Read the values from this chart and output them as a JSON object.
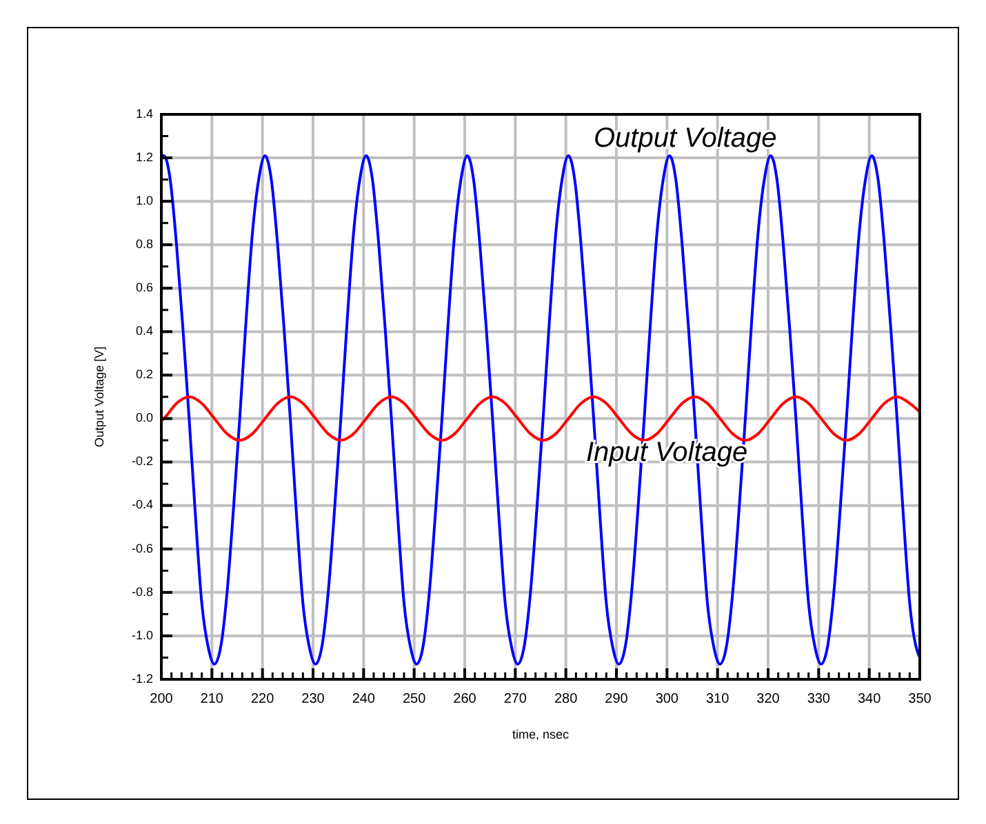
{
  "chart_data": {
    "type": "line",
    "xlabel": "time, nsec",
    "ylabel": "Output Voltage [V]",
    "xlim": [
      200,
      350
    ],
    "xticks": [
      200,
      210,
      220,
      230,
      240,
      250,
      260,
      270,
      280,
      290,
      300,
      310,
      320,
      330,
      340,
      350
    ],
    "ylim": [
      -1.2,
      1.4
    ],
    "yticks": [
      {
        "value": -1.2,
        "label": "-1.2"
      },
      {
        "value": -1.0,
        "label": "-1.0"
      },
      {
        "value": -0.8,
        "label": "-0.8"
      },
      {
        "value": -0.6,
        "label": "-0.6"
      },
      {
        "value": -0.4,
        "label": "-0.4"
      },
      {
        "value": -0.2,
        "label": "-0.2"
      },
      {
        "value": 0,
        "label": "0.0"
      },
      {
        "value": 0.2,
        "label": "0.2"
      },
      {
        "value": 0.4,
        "label": "0.4"
      },
      {
        "value": 0.6,
        "label": "0.6"
      },
      {
        "value": 0.8,
        "label": "0.8"
      },
      {
        "value": 1.0,
        "label": "1.0"
      },
      {
        "value": 1.2,
        "label": "1.2"
      },
      {
        "value": 1.4,
        "label": "1.4"
      }
    ],
    "grid": true,
    "marker": "none",
    "line_style": "solid",
    "series": [
      {
        "name": "Output Voltage",
        "color": "#0000ff",
        "x": [
          200,
          200.5,
          201.75,
          203,
          204.25,
          205.5,
          206.75,
          208,
          209.25,
          210.5,
          211.75,
          213,
          214.25,
          215.5,
          216.75,
          218,
          219.25,
          220.5,
          221.75,
          223,
          224.25,
          225.5,
          226.75,
          228,
          229.25,
          230.5,
          231.75,
          233,
          234.25,
          235.5,
          236.75,
          238,
          239.25,
          240.5,
          241.75,
          243,
          244.25,
          245.5,
          246.75,
          248,
          249.25,
          250.5,
          251.75,
          253,
          254.25,
          255.5,
          256.75,
          258,
          259.25,
          260.5,
          261.75,
          263,
          264.25,
          265.5,
          266.75,
          268,
          269.25,
          270.5,
          271.75,
          273,
          274.25,
          275.5,
          276.75,
          278,
          279.25,
          280.5,
          281.75,
          283,
          284.25,
          285.5,
          286.75,
          288,
          289.25,
          290.5,
          291.75,
          293,
          294.25,
          295.5,
          296.75,
          298,
          299.25,
          300.5,
          301.75,
          303,
          304.25,
          305.5,
          306.75,
          308,
          309.25,
          310.5,
          311.75,
          313,
          314.25,
          315.5,
          316.75,
          318,
          319.25,
          320.5,
          321.75,
          323,
          324.25,
          325.5,
          326.75,
          328,
          329.25,
          330.5,
          331.75,
          333,
          334.25,
          335.5,
          336.75,
          338,
          339.25,
          340.5,
          341.75,
          343,
          344.25,
          345.5,
          346.75,
          348,
          349.25,
          350
        ],
        "values": [
          1.21,
          1.21,
          1.1,
          0.8,
          0.42,
          0,
          -0.45,
          -0.85,
          -1.05,
          -1.13,
          -1.05,
          -0.8,
          -0.42,
          0,
          0.45,
          0.85,
          1.1,
          1.21,
          1.1,
          0.8,
          0.42,
          0,
          -0.45,
          -0.85,
          -1.05,
          -1.13,
          -1.05,
          -0.8,
          -0.42,
          0,
          0.45,
          0.85,
          1.1,
          1.21,
          1.1,
          0.8,
          0.42,
          0,
          -0.45,
          -0.85,
          -1.05,
          -1.13,
          -1.05,
          -0.8,
          -0.42,
          0,
          0.45,
          0.85,
          1.1,
          1.21,
          1.1,
          0.8,
          0.42,
          0,
          -0.45,
          -0.85,
          -1.05,
          -1.13,
          -1.05,
          -0.8,
          -0.42,
          0,
          0.45,
          0.85,
          1.1,
          1.21,
          1.1,
          0.8,
          0.42,
          0,
          -0.45,
          -0.85,
          -1.05,
          -1.13,
          -1.05,
          -0.8,
          -0.42,
          0,
          0.45,
          0.85,
          1.1,
          1.21,
          1.1,
          0.8,
          0.42,
          0,
          -0.45,
          -0.85,
          -1.05,
          -1.13,
          -1.05,
          -0.8,
          -0.42,
          0,
          0.45,
          0.85,
          1.1,
          1.21,
          1.1,
          0.8,
          0.42,
          0,
          -0.45,
          -0.85,
          -1.05,
          -1.13,
          -1.05,
          -0.8,
          -0.42,
          0,
          0.45,
          0.85,
          1.1,
          1.21,
          1.1,
          0.8,
          0.42,
          0,
          -0.45,
          -0.85,
          -1.05,
          -1.1
        ]
      },
      {
        "name": "Input Voltage",
        "color": "#ff0000",
        "x": [
          200,
          200.5,
          203,
          205.5,
          208,
          210.5,
          213,
          215.5,
          218,
          220.5,
          223,
          225.5,
          228,
          230.5,
          233,
          235.5,
          238,
          240.5,
          243,
          245.5,
          248,
          250.5,
          253,
          255.5,
          258,
          260.5,
          263,
          265.5,
          268,
          270.5,
          273,
          275.5,
          278,
          280.5,
          283,
          285.5,
          288,
          290.5,
          293,
          295.5,
          298,
          300.5,
          303,
          305.5,
          308,
          310.5,
          313,
          315.5,
          318,
          320.5,
          323,
          325.5,
          328,
          330.5,
          333,
          335.5,
          338,
          340.5,
          343,
          345.5,
          348,
          350
        ],
        "values": [
          -0.01,
          0,
          0.07,
          0.1,
          0.07,
          0,
          -0.07,
          -0.1,
          -0.07,
          0,
          0.07,
          0.1,
          0.07,
          0,
          -0.07,
          -0.1,
          -0.07,
          0,
          0.07,
          0.1,
          0.07,
          0,
          -0.07,
          -0.1,
          -0.07,
          0,
          0.07,
          0.1,
          0.07,
          0,
          -0.07,
          -0.1,
          -0.07,
          0,
          0.07,
          0.1,
          0.07,
          0,
          -0.07,
          -0.1,
          -0.07,
          0,
          0.07,
          0.1,
          0.07,
          0,
          -0.07,
          -0.1,
          -0.07,
          0,
          0.07,
          0.1,
          0.07,
          0,
          -0.07,
          -0.1,
          -0.07,
          0,
          0.07,
          0.1,
          0.07,
          0.03
        ]
      }
    ]
  }
}
